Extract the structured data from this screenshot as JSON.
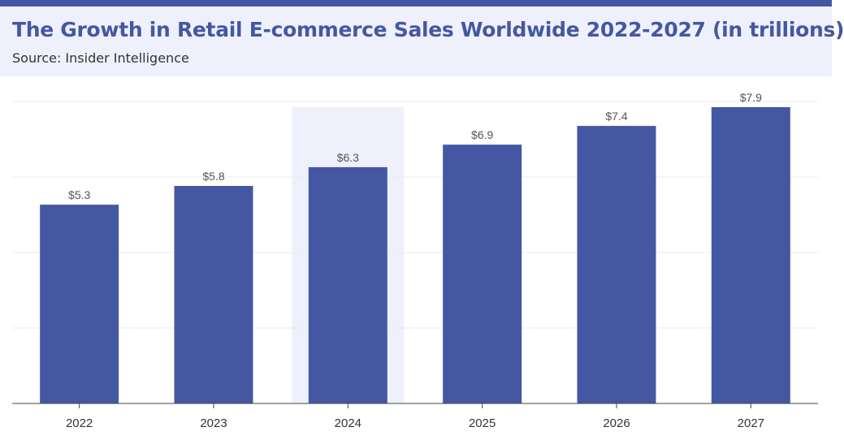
{
  "header": {
    "title": "The Growth in Retail E-commerce Sales Worldwide 2022-2027 (in trillions)",
    "subtitle": "Source: Insider Intelligence"
  },
  "colors": {
    "accent": "#4557a3",
    "bar": "#4557a3",
    "highlight_band": "#eef1fb",
    "header_bg": "#eef1fb"
  },
  "chart_data": {
    "type": "bar",
    "categories": [
      "2022",
      "2023",
      "2024",
      "2025",
      "2026",
      "2027"
    ],
    "values": [
      5.3,
      5.8,
      6.3,
      6.9,
      7.4,
      7.9
    ],
    "data_labels": [
      "$5.3",
      "$5.8",
      "$6.3",
      "$6.9",
      "$7.4",
      "$7.9"
    ],
    "ylim": [
      0,
      7.9
    ],
    "grid": true,
    "highlighted_category": "2024",
    "title": "The Growth in Retail E-commerce Sales Worldwide 2022-2027 (in trillions)",
    "xlabel": "",
    "ylabel": ""
  }
}
